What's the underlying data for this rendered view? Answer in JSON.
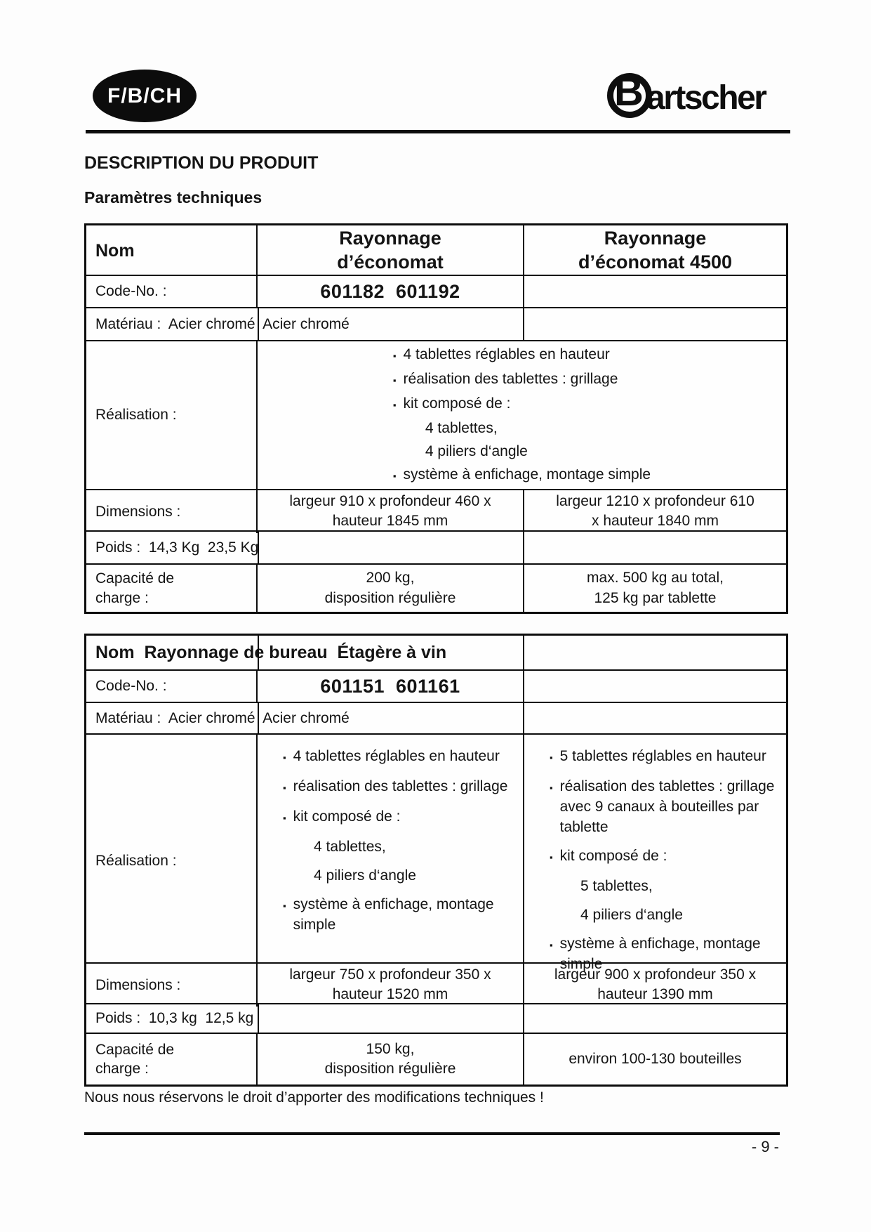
{
  "colors": {
    "ink": "#0d0d0d",
    "paper": "#fdfdfd"
  },
  "page": {
    "badge": "F/B/CH",
    "logo_b": "B",
    "logo_rest": "artscher",
    "title": "DESCRIPTION DU PRODUIT",
    "subtitle": "Paramètres techniques",
    "footer_note": "Nous nous réservons le droit d’apporter des modifications techniques !",
    "page_number": "- 9 -"
  },
  "table1": {
    "header": {
      "name": "Nom",
      "col2": "Rayonnage\nd’économat",
      "col3": "Rayonnage\nd’économat 4500"
    },
    "code": {
      "label": "Code-No. :",
      "value": "601182  601192"
    },
    "materiau": "Matériau :  Acier chromé  Acier chromé",
    "realisation": {
      "label": "Réalisation :",
      "items": [
        {
          "bullet": true,
          "text": "4 tablettes réglables en hauteur"
        },
        {
          "bullet": true,
          "text": "réalisation des tablettes : grillage"
        },
        {
          "bullet": true,
          "text": "kit composé de :"
        },
        {
          "bullet": false,
          "text": "4 tablettes,"
        },
        {
          "bullet": false,
          "text": "4 piliers d‘angle"
        },
        {
          "bullet": true,
          "text": "système à enfichage, montage simple"
        }
      ]
    },
    "dimensions": {
      "label": "Dimensions :",
      "col2": "largeur 910 x profondeur 460 x\nhauteur 1845 mm",
      "col3": "largeur 1210 x profondeur 610\nx hauteur 1840 mm"
    },
    "poids": "Poids :  14,3 Kg  23,5 Kg",
    "capacite": {
      "label": "Capacité de\ncharge :",
      "col2": "200 kg,\ndisposition régulière",
      "col3": "max. 500 kg au total,\n125 kg par tablette"
    }
  },
  "table2": {
    "header": "Nom  Rayonnage de bureau  Étagère à vin",
    "code": {
      "label": "Code-No. :",
      "value": "601151  601161"
    },
    "materiau": "Matériau :  Acier chromé  Acier chromé",
    "realisation": {
      "label": "Réalisation :",
      "col2_items": [
        {
          "bullet": true,
          "text": "4 tablettes réglables en hauteur"
        },
        {
          "bullet": true,
          "text": "réalisation des tablettes : grillage"
        },
        {
          "bullet": true,
          "text": "kit composé de :"
        },
        {
          "bullet": false,
          "text": "4 tablettes,"
        },
        {
          "bullet": false,
          "text": "4 piliers d‘angle"
        },
        {
          "bullet": true,
          "text": "système à enfichage, montage simple"
        }
      ],
      "col3_items": [
        {
          "bullet": true,
          "text": "5 tablettes réglables en hauteur"
        },
        {
          "bullet": true,
          "text": "réalisation des tablettes : grillage avec 9 canaux à bouteilles par tablette"
        },
        {
          "bullet": true,
          "text": "kit composé de :"
        },
        {
          "bullet": false,
          "text": "5 tablettes,"
        },
        {
          "bullet": false,
          "text": "4 piliers d‘angle"
        },
        {
          "bullet": true,
          "text": "système à enfichage, montage simple"
        }
      ]
    },
    "dimensions": {
      "label": "Dimensions :",
      "col2": "largeur 750 x profondeur 350 x\nhauteur 1520 mm",
      "col3": "largeur 900 x profondeur 350 x\nhauteur 1390 mm"
    },
    "poids": "Poids :  10,3 kg  12,5 kg",
    "capacite": {
      "label": "Capacité de\ncharge :",
      "col2": "150 kg,\ndisposition régulière",
      "col3": "environ 100-130 bouteilles"
    }
  }
}
